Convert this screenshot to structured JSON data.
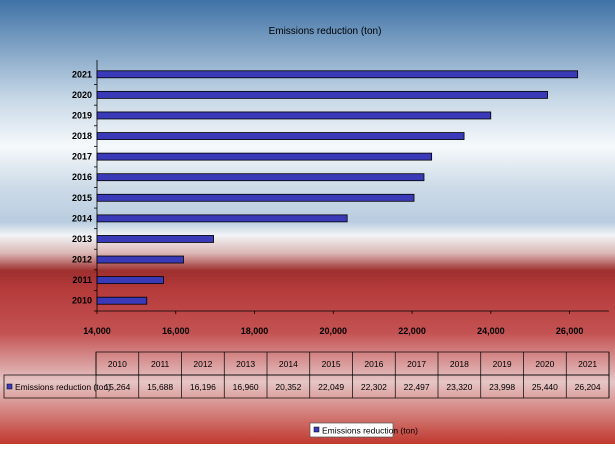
{
  "chart_data": {
    "type": "bar",
    "orientation": "horizontal",
    "title": "Emissions reduction (ton)",
    "categories": [
      "2010",
      "2011",
      "2012",
      "2013",
      "2014",
      "2015",
      "2016",
      "2017",
      "2018",
      "2019",
      "2020",
      "2021"
    ],
    "series": [
      {
        "name": "Emissions reduction (ton)",
        "values": [
          15264,
          15688,
          16196,
          16960,
          20352,
          22049,
          22302,
          22497,
          23320,
          23998,
          25440,
          26204
        ]
      }
    ],
    "value_labels": [
      "15,264",
      "15,688",
      "16,196",
      "16,960",
      "20,352",
      "22,049",
      "22,302",
      "22,497",
      "23,320",
      "23,998",
      "25,440",
      "26,204"
    ],
    "x_ticks": [
      "14,000",
      "16,000",
      "18,000",
      "20,000",
      "22,000",
      "24,000",
      "26,000"
    ],
    "xlim": [
      14000,
      27000
    ],
    "grid": false,
    "legend_position": "bottom",
    "data_table": true,
    "colors": {
      "bar": "#3a3ab8",
      "bar_edge": "#000000"
    }
  }
}
